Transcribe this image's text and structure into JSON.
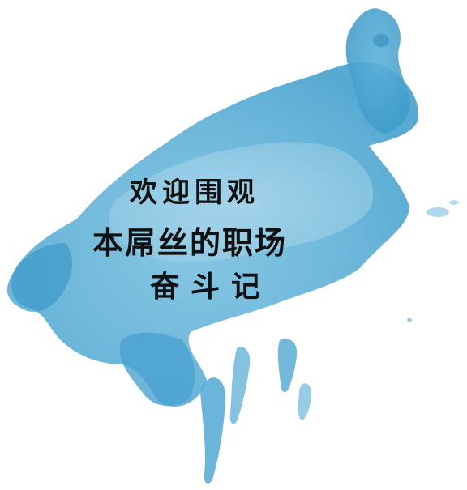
{
  "artwork": {
    "icon": "watercolor-splash",
    "colors": {
      "light": "#aad6ea",
      "mid": "#6fb9db",
      "deep": "#3f9cca",
      "dark": "#2a86b8",
      "background": "#ffffff",
      "text": "#111111"
    }
  },
  "text": {
    "line1": "欢迎围观",
    "line2": "本屌丝的职场",
    "line3": "奋斗记"
  }
}
